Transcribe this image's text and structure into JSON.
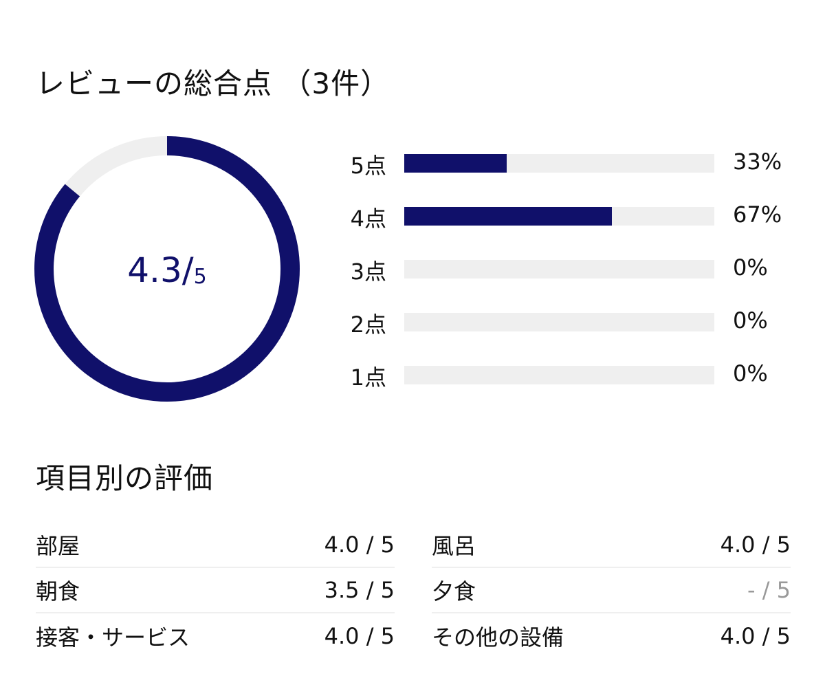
{
  "overall": {
    "title": "レビューの総合点 （3件）",
    "score": "4.3",
    "slash": "/",
    "max": "5",
    "score_value": 4.3,
    "max_value": 5
  },
  "distribution": [
    {
      "label": "5点",
      "percent": "33%",
      "value": 33
    },
    {
      "label": "4点",
      "percent": "67%",
      "value": 67
    },
    {
      "label": "3点",
      "percent": "0%",
      "value": 0
    },
    {
      "label": "2点",
      "percent": "0%",
      "value": 0
    },
    {
      "label": "1点",
      "percent": "0%",
      "value": 0
    }
  ],
  "categories": {
    "title": "項目別の評価",
    "items": [
      {
        "name": "部屋",
        "score": "4.0 / 5"
      },
      {
        "name": "風呂",
        "score": "4.0 / 5"
      },
      {
        "name": "朝食",
        "score": "3.5 / 5"
      },
      {
        "name": "夕食",
        "score": "- / 5"
      },
      {
        "name": "接客・サービス",
        "score": "4.0 / 5"
      },
      {
        "name": "その他の設備",
        "score": "4.0 / 5"
      }
    ]
  },
  "colors": {
    "accent": "#10106a",
    "track": "#efefef",
    "muted": "#999999"
  }
}
